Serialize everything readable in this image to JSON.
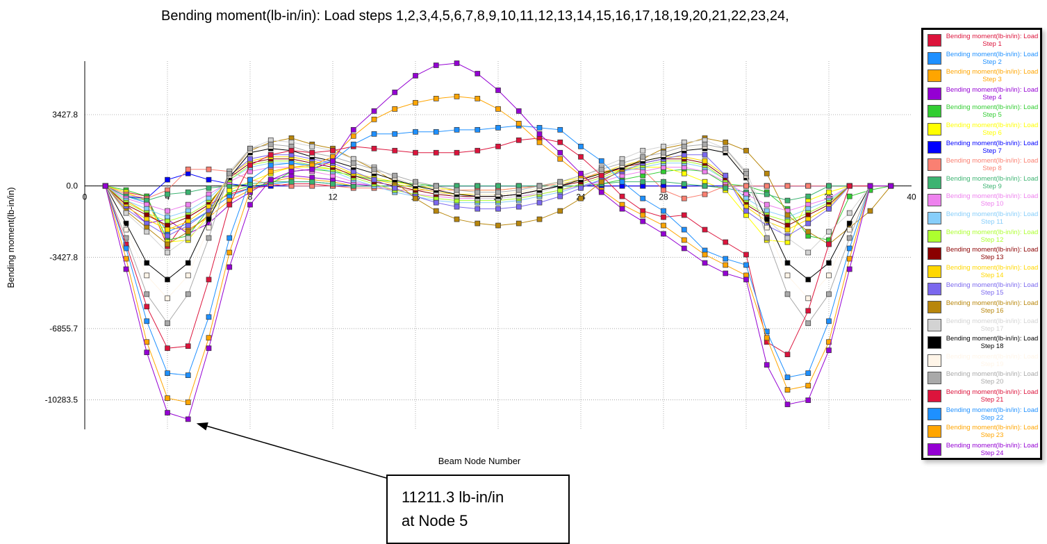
{
  "chart_data": {
    "type": "line",
    "title": "Bending moment(lb-in/in): Load steps  1,2,3,4,5,6,7,8,9,10,11,12,13,14,15,16,17,18,19,20,21,22,23,24,",
    "xlabel": "Beam Node Number",
    "ylabel": "Bending moment(lb-in/in)",
    "xlim": [
      0,
      40
    ],
    "ylim": [
      -11700,
      6000
    ],
    "x_ticks": [
      0,
      4,
      8,
      12,
      16,
      20,
      24,
      28,
      32,
      36,
      40
    ],
    "x_tick_labels": [
      "0",
      "4",
      "8",
      "12",
      "16",
      "20",
      "24",
      "28",
      "32",
      "36",
      "40"
    ],
    "y_ticks": [
      3427.8,
      0.0,
      -3427.8,
      -6855.7,
      -10283.5
    ],
    "y_tick_labels": [
      "3427.8",
      "0.0",
      "-3427.8",
      "-6855.7",
      "-10283.5"
    ],
    "grid": true,
    "legend_position": "right",
    "x": [
      1,
      2,
      3,
      4,
      5,
      6,
      7,
      8,
      9,
      10,
      11,
      12,
      13,
      14,
      15,
      16,
      17,
      18,
      19,
      20,
      21,
      22,
      23,
      24,
      25,
      26,
      27,
      28,
      29,
      30,
      31,
      32,
      33,
      34,
      35,
      36,
      37,
      38,
      39
    ],
    "series": [
      {
        "name": "Bending moment(lb-in/in): Load Step 1",
        "color": "#DC143C",
        "values": [
          0,
          -300,
          -500,
          -2900,
          -1500,
          -900,
          -400,
          -100,
          0,
          100,
          100,
          0,
          0,
          0,
          0,
          0,
          0,
          0,
          0,
          0,
          0,
          0,
          0,
          0,
          0,
          0,
          0,
          0,
          0,
          0,
          0,
          0,
          0,
          0,
          0,
          0,
          0,
          0,
          0
        ]
      },
      {
        "name": "Bending moment(lb-in/in): Load Step 2",
        "color": "#1E90FF",
        "values": [
          0,
          -500,
          -800,
          -2200,
          -1800,
          -1200,
          -500,
          -100,
          100,
          200,
          200,
          100,
          0,
          0,
          0,
          0,
          0,
          0,
          0,
          0,
          0,
          0,
          0,
          0,
          0,
          0,
          0,
          0,
          0,
          0,
          0,
          0,
          0,
          0,
          0,
          0,
          0,
          0,
          0
        ]
      },
      {
        "name": "Bending moment(lb-in/in): Load Step 3",
        "color": "#FFA500",
        "values": [
          0,
          -700,
          -1300,
          -2000,
          -2100,
          -1500,
          -700,
          -200,
          200,
          400,
          300,
          200,
          0,
          0,
          0,
          0,
          0,
          0,
          0,
          0,
          0,
          0,
          0,
          0,
          0,
          0,
          0,
          0,
          0,
          0,
          0,
          0,
          0,
          0,
          0,
          0,
          0,
          0,
          0
        ]
      },
      {
        "name": "Bending moment(lb-in/in): Load Step 4",
        "color": "#9400D3",
        "values": [
          0,
          -900,
          -1800,
          -1600,
          -2300,
          -1800,
          -900,
          -300,
          300,
          500,
          400,
          300,
          100,
          0,
          0,
          0,
          0,
          0,
          0,
          0,
          0,
          0,
          0,
          0,
          0,
          0,
          0,
          0,
          0,
          0,
          0,
          0,
          0,
          0,
          0,
          0,
          0,
          0,
          0
        ]
      },
      {
        "name": "Bending moment(lb-in/in): Load Step 5",
        "color": "#32CD32",
        "values": [
          0,
          -200,
          -500,
          -2600,
          -2400,
          -1100,
          -300,
          0,
          100,
          700,
          800,
          700,
          500,
          300,
          200,
          100,
          0,
          0,
          0,
          0,
          0,
          0,
          0,
          0,
          100,
          300,
          500,
          700,
          800,
          700,
          100,
          0,
          -300,
          -1100,
          -2400,
          -2600,
          -500,
          -200,
          0
        ]
      },
      {
        "name": "Bending moment(lb-in/in): Load Step 6",
        "color": "#FFFF00",
        "values": [
          0,
          -300,
          -700,
          -2700,
          -2600,
          -1400,
          -200,
          200,
          600,
          900,
          900,
          800,
          600,
          400,
          200,
          0,
          -100,
          -200,
          -200,
          -200,
          -100,
          0,
          200,
          400,
          600,
          800,
          900,
          900,
          600,
          200,
          -200,
          -1400,
          -2600,
          -2700,
          -700,
          -300,
          0,
          0,
          0
        ]
      },
      {
        "name": "Bending moment(lb-in/in): Load Step 7",
        "color": "#0000FF",
        "values": [
          0,
          -500,
          -600,
          300,
          600,
          300,
          100,
          0,
          0,
          0,
          0,
          0,
          0,
          0,
          0,
          0,
          0,
          0,
          0,
          0,
          0,
          0,
          0,
          0,
          0,
          0,
          0,
          0,
          0,
          0,
          0,
          0,
          0,
          0,
          0,
          0,
          0,
          0,
          0
        ]
      },
      {
        "name": "Bending moment(lb-in/in): Load Step 8",
        "color": "#FA8072",
        "values": [
          0,
          -400,
          -600,
          -200,
          800,
          800,
          700,
          300,
          100,
          0,
          0,
          0,
          -100,
          -100,
          -200,
          -200,
          -200,
          -200,
          -200,
          -200,
          -100,
          0,
          100,
          300,
          700,
          800,
          800,
          -200,
          -600,
          -400,
          0,
          0,
          0,
          0,
          0,
          0,
          0,
          0,
          0
        ]
      },
      {
        "name": "Bending moment(lb-in/in): Load Step 9",
        "color": "#3CB371",
        "values": [
          0,
          -500,
          -700,
          -400,
          -300,
          -100,
          0,
          100,
          200,
          200,
          200,
          100,
          0,
          0,
          0,
          0,
          0,
          0,
          0,
          0,
          0,
          0,
          0,
          0,
          100,
          200,
          200,
          200,
          100,
          0,
          -100,
          -300,
          -400,
          -700,
          -500,
          0,
          0,
          0,
          0
        ]
      },
      {
        "name": "Bending moment(lb-in/in): Load Step 10",
        "color": "#EE82EE",
        "values": [
          0,
          -600,
          -900,
          -1200,
          -900,
          -400,
          200,
          700,
          900,
          900,
          700,
          500,
          200,
          0,
          -200,
          -400,
          -500,
          -600,
          -600,
          -600,
          -500,
          -400,
          -200,
          0,
          200,
          500,
          700,
          900,
          900,
          700,
          200,
          -400,
          -900,
          -1200,
          -900,
          -600,
          0,
          0,
          0
        ]
      },
      {
        "name": "Bending moment(lb-in/in): Load Step 11",
        "color": "#87CEFA",
        "values": [
          0,
          -700,
          -1100,
          -1500,
          -1200,
          -600,
          300,
          900,
          1100,
          1100,
          900,
          700,
          300,
          0,
          -300,
          -500,
          -700,
          -800,
          -800,
          -800,
          -700,
          -500,
          -300,
          0,
          300,
          700,
          900,
          1100,
          1100,
          900,
          300,
          -600,
          -1200,
          -1500,
          -1100,
          -700,
          0,
          0,
          0
        ]
      },
      {
        "name": "Bending moment(lb-in/in): Load Step 12",
        "color": "#ADFF2F",
        "values": [
          0,
          -800,
          -1300,
          -1700,
          -1400,
          -800,
          300,
          1000,
          1200,
          1200,
          1000,
          800,
          400,
          100,
          -200,
          -400,
          -600,
          -700,
          -700,
          -700,
          -600,
          -400,
          -200,
          100,
          400,
          800,
          1000,
          1200,
          1200,
          1000,
          300,
          -800,
          -1400,
          -1700,
          -1300,
          -800,
          0,
          0,
          0
        ]
      },
      {
        "name": "Bending moment(lb-in/in): Load Step 13",
        "color": "#8B0000",
        "values": [
          0,
          -900,
          -1400,
          -1900,
          -1500,
          -900,
          400,
          1100,
          1300,
          1300,
          1100,
          900,
          500,
          200,
          0,
          -200,
          -400,
          -500,
          -500,
          -500,
          -400,
          -200,
          0,
          200,
          500,
          900,
          1100,
          1300,
          1300,
          1100,
          400,
          -900,
          -1500,
          -1900,
          -1400,
          -900,
          0,
          0,
          0
        ]
      },
      {
        "name": "Bending moment(lb-in/in): Load Step 14",
        "color": "#FFD700",
        "values": [
          0,
          -1000,
          -1600,
          -2100,
          -1700,
          -1000,
          500,
          1200,
          1400,
          1400,
          1200,
          1000,
          600,
          300,
          100,
          -100,
          -300,
          -400,
          -400,
          -400,
          -300,
          -100,
          100,
          300,
          600,
          1000,
          1200,
          1400,
          1400,
          1200,
          500,
          -1000,
          -1700,
          -2100,
          -1600,
          -1000,
          0,
          0,
          0
        ]
      },
      {
        "name": "Bending moment(lb-in/in): Load Step 15",
        "color": "#7B68EE",
        "values": [
          0,
          -1100,
          -1800,
          -2400,
          -1900,
          -1200,
          500,
          1300,
          1500,
          1500,
          1300,
          1100,
          700,
          300,
          -100,
          -500,
          -800,
          -1000,
          -1100,
          -1100,
          -1000,
          -800,
          -500,
          -100,
          300,
          700,
          1100,
          1300,
          1500,
          1500,
          500,
          -1200,
          -1900,
          -2400,
          -1800,
          -1100,
          0,
          0,
          0
        ]
      },
      {
        "name": "Bending moment(lb-in/in): Load Step 16",
        "color": "#B8860B",
        "values": [
          0,
          -1200,
          -2000,
          -2800,
          -2200,
          -1400,
          600,
          1700,
          2100,
          2300,
          2000,
          1800,
          1300,
          800,
          200,
          -600,
          -1200,
          -1600,
          -1800,
          -1900,
          -1800,
          -1600,
          -1200,
          -600,
          200,
          800,
          1300,
          1800,
          2000,
          2300,
          2100,
          1700,
          600,
          -1400,
          -2200,
          -2800,
          -2000,
          -1200,
          0
        ]
      },
      {
        "name": "Bending moment(lb-in/in): Load Step 17",
        "color": "#D3D3D3",
        "values": [
          0,
          -1300,
          -2200,
          -3200,
          -2500,
          -1600,
          700,
          1800,
          2200,
          2100,
          1900,
          1700,
          1300,
          900,
          400,
          0,
          -300,
          -500,
          -600,
          -600,
          -500,
          -300,
          0,
          400,
          900,
          1300,
          1700,
          1900,
          2100,
          2200,
          1800,
          700,
          -1600,
          -2500,
          -3200,
          -2200,
          -1300,
          0,
          0
        ]
      },
      {
        "name": "Bending moment(lb-in/in): Load Step 18",
        "color": "#000000",
        "values": [
          0,
          -1800,
          -3700,
          -4500,
          -3700,
          -1600,
          400,
          1600,
          1800,
          1700,
          1400,
          1200,
          900,
          600,
          300,
          0,
          -200,
          -400,
          -500,
          -500,
          -400,
          -200,
          0,
          300,
          600,
          900,
          1200,
          1400,
          1700,
          1800,
          1600,
          400,
          -1600,
          -3700,
          -4500,
          -3700,
          -1800,
          0,
          0
        ]
      },
      {
        "name": "Bending moment(lb-in/in): Load Step 19",
        "color": "#FFF5E8",
        "values": [
          0,
          -2100,
          -4300,
          -5400,
          -4300,
          -2000,
          500,
          1700,
          1900,
          1800,
          1500,
          1300,
          1000,
          700,
          400,
          100,
          -100,
          -300,
          -400,
          -400,
          -300,
          -100,
          100,
          400,
          700,
          1000,
          1300,
          1500,
          1800,
          1900,
          1700,
          500,
          -2000,
          -4300,
          -5400,
          -4300,
          -2100,
          0,
          0
        ]
      },
      {
        "name": "Bending moment(lb-in/in): Load Step 20",
        "color": "#A9A9A9",
        "values": [
          0,
          -2500,
          -5200,
          -6600,
          -5200,
          -2500,
          600,
          1800,
          2000,
          1900,
          1600,
          1400,
          1100,
          800,
          500,
          200,
          0,
          -200,
          -300,
          -300,
          -200,
          0,
          200,
          500,
          800,
          1100,
          1400,
          1600,
          1900,
          2000,
          1800,
          600,
          -2500,
          -5200,
          -6600,
          -5200,
          -2500,
          0,
          0
        ]
      },
      {
        "name": "Bending moment(lb-in/in): Load Step 21",
        "color": "#DC143C",
        "values": [
          0,
          -2800,
          -5800,
          -7800,
          -7700,
          -4500,
          -900,
          1000,
          1500,
          1700,
          1600,
          1700,
          1900,
          1800,
          1700,
          1600,
          1600,
          1600,
          1700,
          1900,
          2200,
          2300,
          2100,
          1400,
          500,
          -500,
          -1200,
          -1500,
          -1400,
          -2100,
          -2700,
          -3300,
          -7500,
          -8100,
          -6000,
          -2800,
          0,
          0,
          0
        ]
      },
      {
        "name": "Bending moment(lb-in/in): Load Step 22",
        "color": "#1E90FF",
        "values": [
          0,
          -3000,
          -6500,
          -9000,
          -9100,
          -6300,
          -2500,
          300,
          1000,
          1100,
          1000,
          1200,
          2000,
          2500,
          2500,
          2600,
          2600,
          2700,
          2700,
          2800,
          2900,
          2800,
          2700,
          1900,
          1200,
          200,
          -600,
          -1200,
          -2100,
          -3100,
          -3500,
          -3800,
          -7000,
          -9200,
          -9000,
          -6500,
          -3000,
          0,
          0
        ]
      },
      {
        "name": "Bending moment(lb-in/in): Load Step 23",
        "color": "#FFA500",
        "values": [
          0,
          -3500,
          -7500,
          -10200,
          -10400,
          -7300,
          -3200,
          -200,
          700,
          900,
          1000,
          1400,
          2400,
          3200,
          3700,
          4000,
          4200,
          4300,
          4200,
          3700,
          3000,
          2100,
          1300,
          500,
          -200,
          -900,
          -1400,
          -1900,
          -2600,
          -3300,
          -3800,
          -4300,
          -7300,
          -9800,
          -9600,
          -7500,
          -3500,
          0,
          0
        ]
      },
      {
        "name": "Bending moment(lb-in/in): Load Step 24",
        "color": "#9400D3",
        "values": [
          0,
          -4000,
          -8000,
          -10900,
          -11211.3,
          -7800,
          -3900,
          -900,
          300,
          700,
          800,
          1200,
          2700,
          3600,
          4500,
          5300,
          5800,
          5900,
          5400,
          4600,
          3600,
          2500,
          1600,
          600,
          -300,
          -1100,
          -1700,
          -2300,
          -3000,
          -3700,
          -4200,
          -4500,
          -8600,
          -10500,
          -10300,
          -7900,
          -4000,
          0,
          0
        ]
      }
    ]
  },
  "annotation": {
    "line1": "11211.3 lb-in/in",
    "line2": "at Node 5"
  }
}
